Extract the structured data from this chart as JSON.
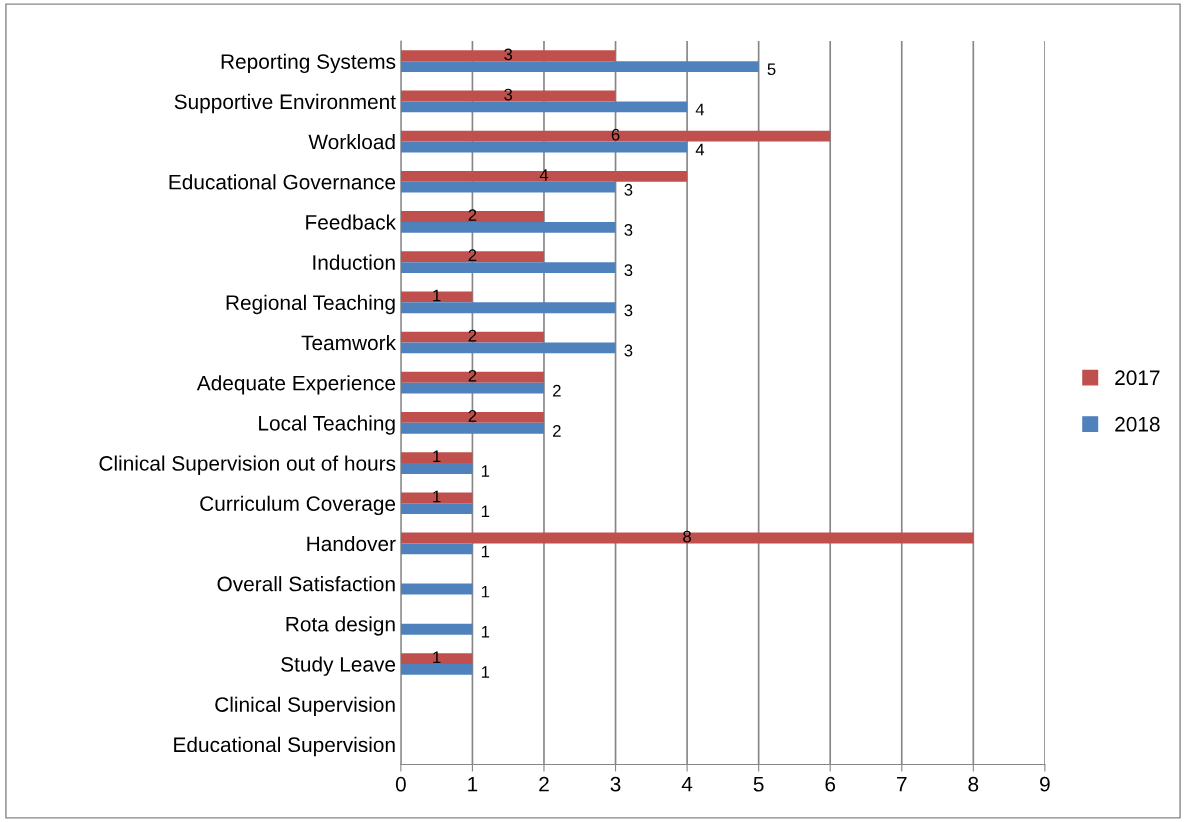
{
  "chart_data": {
    "type": "bar",
    "orientation": "horizontal",
    "categories": [
      "Reporting Systems",
      "Supportive Environment",
      "Workload",
      "Educational Governance",
      "Feedback",
      "Induction",
      "Regional Teaching",
      "Teamwork",
      "Adequate Experience",
      "Local Teaching",
      "Clinical Supervision out of hours",
      "Curriculum Coverage",
      "Handover",
      "Overall Satisfaction",
      "Rota design",
      "Study Leave",
      "Clinical Supervision",
      "Educational Supervision"
    ],
    "series": [
      {
        "name": "2017",
        "color": "#c0504d",
        "values": [
          3,
          3,
          6,
          4,
          2,
          2,
          1,
          2,
          2,
          2,
          1,
          1,
          8,
          null,
          null,
          1,
          null,
          null
        ]
      },
      {
        "name": "2018",
        "color": "#4f81bd",
        "values": [
          5,
          4,
          4,
          3,
          3,
          3,
          3,
          3,
          2,
          2,
          1,
          1,
          1,
          1,
          1,
          1,
          null,
          null
        ]
      }
    ],
    "xlim": [
      0,
      9
    ],
    "xticks": [
      0,
      1,
      2,
      3,
      4,
      5,
      6,
      7,
      8,
      9
    ],
    "grid": "x",
    "legend": "right",
    "data_labels": true
  }
}
